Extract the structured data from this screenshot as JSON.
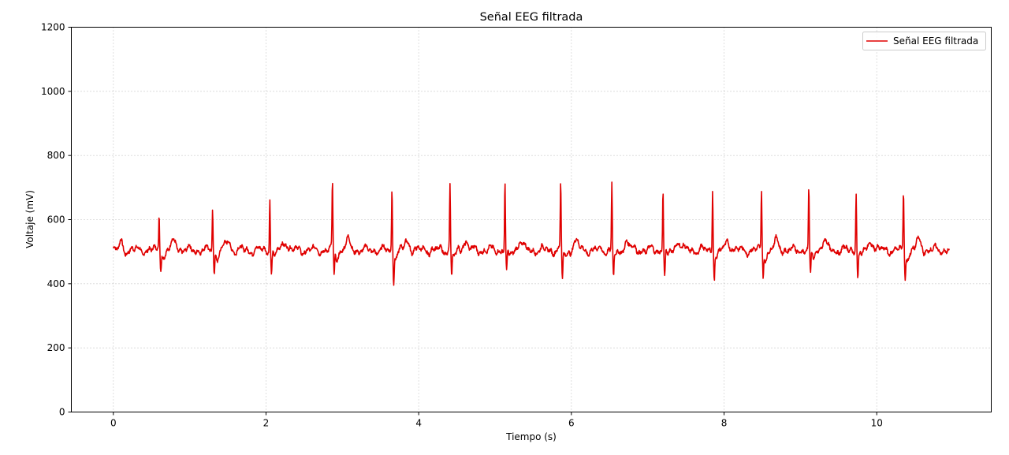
{
  "chart_data": {
    "type": "line",
    "title": "Señal EEG filtrada",
    "xlabel": "Tiempo (s)",
    "ylabel": "Voltaje (mV)",
    "xlim": [
      -0.55,
      11.5
    ],
    "ylim": [
      0,
      1200
    ],
    "xticks": [
      0,
      2,
      4,
      6,
      8,
      10
    ],
    "yticks": [
      0,
      200,
      400,
      600,
      800,
      1000,
      1200
    ],
    "xtick_labels": [
      "0",
      "2",
      "4",
      "6",
      "8",
      "10"
    ],
    "ytick_labels": [
      "0",
      "200",
      "400",
      "600",
      "800",
      "1000",
      "1200"
    ],
    "grid": true,
    "legend_position": "top-right",
    "duration": 10.95,
    "baseline": 505,
    "series": [
      {
        "name": "Señal EEG filtrada",
        "color": "#e00000",
        "peaks": [
          {
            "t": 0.6,
            "max": 625,
            "min": 460
          },
          {
            "t": 1.3,
            "max": 635,
            "min": 440
          },
          {
            "t": 2.05,
            "max": 677,
            "min": 440
          },
          {
            "t": 2.87,
            "max": 715,
            "min": 433
          },
          {
            "t": 3.65,
            "max": 700,
            "min": 418
          },
          {
            "t": 4.41,
            "max": 705,
            "min": 430
          },
          {
            "t": 5.13,
            "max": 720,
            "min": 432
          },
          {
            "t": 5.86,
            "max": 715,
            "min": 422
          },
          {
            "t": 6.53,
            "max": 717,
            "min": 425
          },
          {
            "t": 7.2,
            "max": 703,
            "min": 425
          },
          {
            "t": 7.85,
            "max": 702,
            "min": 422
          },
          {
            "t": 8.49,
            "max": 695,
            "min": 430
          },
          {
            "t": 9.11,
            "max": 697,
            "min": 420
          },
          {
            "t": 9.73,
            "max": 693,
            "min": 428
          },
          {
            "t": 10.35,
            "max": 682,
            "min": 423
          }
        ]
      }
    ]
  }
}
